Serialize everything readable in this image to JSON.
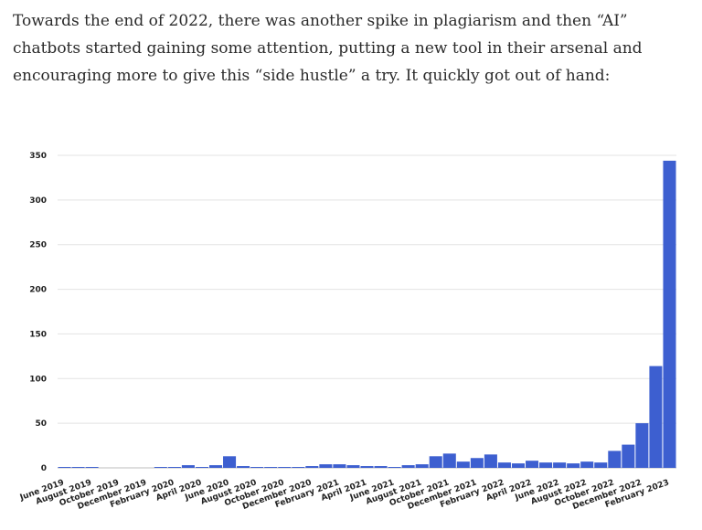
{
  "article": {
    "paragraph": "Towards the end of 2022, there was another spike in plagiarism and then “AI” chatbots started gaining some attention, putting a new tool in their arsenal and encouraging more to give this “side hustle” a try. It quickly got out of hand:"
  },
  "chart_data": {
    "type": "bar",
    "title": "",
    "xlabel": "",
    "ylabel": "",
    "ylim": [
      0,
      350
    ],
    "yticks": [
      0,
      50,
      100,
      150,
      200,
      250,
      300,
      350
    ],
    "grid": true,
    "bar_color": "#3d5fd0",
    "categories": [
      "June 2019",
      "July 2019",
      "August 2019",
      "September 2019",
      "October 2019",
      "November 2019",
      "December 2019",
      "January 2020",
      "February 2020",
      "March 2020",
      "April 2020",
      "May 2020",
      "June 2020",
      "July 2020",
      "August 2020",
      "September 2020",
      "October 2020",
      "November 2020",
      "December 2020",
      "January 2021",
      "February 2021",
      "March 2021",
      "April 2021",
      "May 2021",
      "June 2021",
      "July 2021",
      "August 2021",
      "September 2021",
      "October 2021",
      "November 2021",
      "December 2021",
      "January 2022",
      "February 2022",
      "March 2022",
      "April 2022",
      "May 2022",
      "June 2022",
      "July 2022",
      "August 2022",
      "September 2022",
      "October 2022",
      "November 2022",
      "December 2022",
      "January 2023",
      "February 2023"
    ],
    "tick_labels": [
      "June 2019",
      "August 2019",
      "October 2019",
      "December 2019",
      "February 2020",
      "April 2020",
      "June 2020",
      "August 2020",
      "October 2020",
      "December 2020",
      "February 2021",
      "April 2021",
      "June 2021",
      "August 2021",
      "October 2021",
      "December 2021",
      "February 2022",
      "April 2022",
      "June 2022",
      "August 2022",
      "October 2022",
      "December 2022",
      "February 2023"
    ],
    "values": [
      1,
      1,
      1,
      0,
      0,
      0,
      0,
      1,
      1,
      3,
      1,
      3,
      13,
      2,
      1,
      1,
      1,
      1,
      2,
      4,
      4,
      3,
      2,
      2,
      1,
      3,
      4,
      13,
      16,
      7,
      11,
      15,
      6,
      5,
      8,
      6,
      6,
      5,
      7,
      6,
      19,
      26,
      50,
      114,
      344
    ]
  }
}
